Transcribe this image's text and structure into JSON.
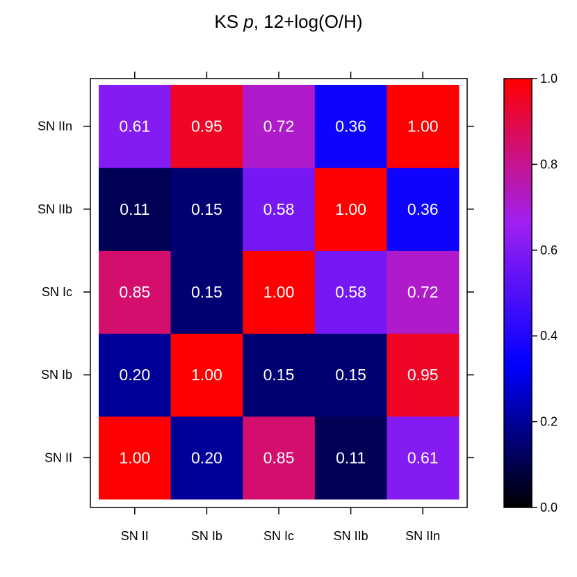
{
  "chart_data": {
    "type": "heatmap",
    "title_prefix": "KS ",
    "title_italic": "p",
    "title_suffix": ", 12+log(O/H)",
    "xlabel": "",
    "ylabel": "",
    "x_categories": [
      "SN II",
      "SN Ib",
      "SN Ic",
      "SN IIb",
      "SN IIn"
    ],
    "y_categories": [
      "SN II",
      "SN Ib",
      "SN Ic",
      "SN IIb",
      "SN IIn"
    ],
    "values": [
      [
        1.0,
        0.2,
        0.85,
        0.11,
        0.61
      ],
      [
        0.2,
        1.0,
        0.15,
        0.15,
        0.95
      ],
      [
        0.85,
        0.15,
        1.0,
        0.58,
        0.72
      ],
      [
        0.11,
        0.15,
        0.58,
        1.0,
        0.36
      ],
      [
        0.61,
        0.95,
        0.72,
        0.36,
        1.0
      ]
    ],
    "value_labels": [
      [
        "1.00",
        "0.20",
        "0.85",
        "0.11",
        "0.61"
      ],
      [
        "0.20",
        "1.00",
        "0.15",
        "0.15",
        "0.95"
      ],
      [
        "0.85",
        "0.15",
        "1.00",
        "0.58",
        "0.72"
      ],
      [
        "0.11",
        "0.15",
        "0.58",
        "1.00",
        "0.36"
      ],
      [
        "0.61",
        "0.95",
        "0.72",
        "0.36",
        "1.00"
      ]
    ],
    "colorbar": {
      "range": [
        0.0,
        1.0
      ],
      "ticks": [
        "0.0",
        "0.2",
        "0.4",
        "0.6",
        "0.8",
        "1.0"
      ],
      "color_stops": [
        "#000000",
        "#0000ff",
        "#a020f0",
        "#ff0000"
      ]
    },
    "legend_position": "right",
    "grid": false
  }
}
